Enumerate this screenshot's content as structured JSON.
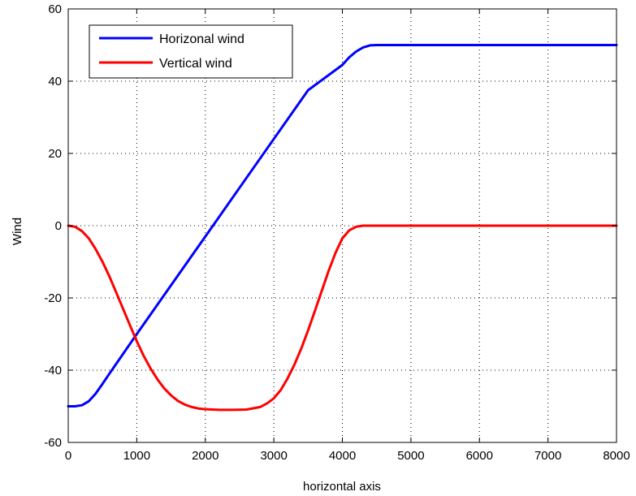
{
  "chart_data": {
    "type": "line",
    "title": "",
    "xlabel": "horizontal axis",
    "ylabel": "Wind",
    "xlim": [
      0,
      8000
    ],
    "ylim": [
      -60,
      60
    ],
    "xticks": [
      0,
      1000,
      2000,
      3000,
      4000,
      5000,
      6000,
      7000,
      8000
    ],
    "yticks": [
      -60,
      -40,
      -20,
      0,
      20,
      40,
      60
    ],
    "grid": true,
    "legend_position": "top-left",
    "series": [
      {
        "name": "Horizonal wind",
        "color": "#0000ff",
        "x": [
          0,
          100,
          200,
          300,
          400,
          500,
          600,
          800,
          1000,
          1500,
          2000,
          2500,
          3000,
          3500,
          4000,
          4100,
          4200,
          4300,
          4400,
          4500,
          5000,
          6000,
          7000,
          8000
        ],
        "y": [
          -50,
          -50,
          -49.7,
          -48.6,
          -46.5,
          -43.8,
          -41,
          -35.5,
          -30,
          -16.5,
          -3,
          10.5,
          24,
          37.5,
          44.5,
          46.6,
          48.2,
          49.3,
          49.9,
          50,
          50,
          50,
          50,
          50
        ]
      },
      {
        "name": "Vertical wind",
        "color": "#ff0000",
        "x": [
          0,
          100,
          200,
          300,
          400,
          500,
          600,
          700,
          800,
          900,
          1000,
          1100,
          1200,
          1300,
          1400,
          1500,
          1600,
          1700,
          1800,
          1900,
          2000,
          2200,
          2400,
          2600,
          2800,
          2900,
          3000,
          3100,
          3200,
          3300,
          3400,
          3500,
          3600,
          3700,
          3800,
          3900,
          4000,
          4100,
          4200,
          4300,
          4400,
          4500,
          5000,
          6000,
          7000,
          8000
        ],
        "y": [
          0,
          -0.3,
          -1.5,
          -3.5,
          -6.5,
          -10,
          -14,
          -18.5,
          -23,
          -27.5,
          -32,
          -36,
          -39.5,
          -42.5,
          -45,
          -47,
          -48.5,
          -49.5,
          -50.2,
          -50.6,
          -50.8,
          -51,
          -51,
          -50.9,
          -50.2,
          -49.2,
          -47.8,
          -45.5,
          -42.3,
          -38.5,
          -34,
          -29,
          -23.5,
          -18,
          -12.5,
          -7.5,
          -3.5,
          -1.3,
          -0.3,
          0,
          0,
          0,
          0,
          0,
          0,
          0
        ]
      }
    ]
  }
}
